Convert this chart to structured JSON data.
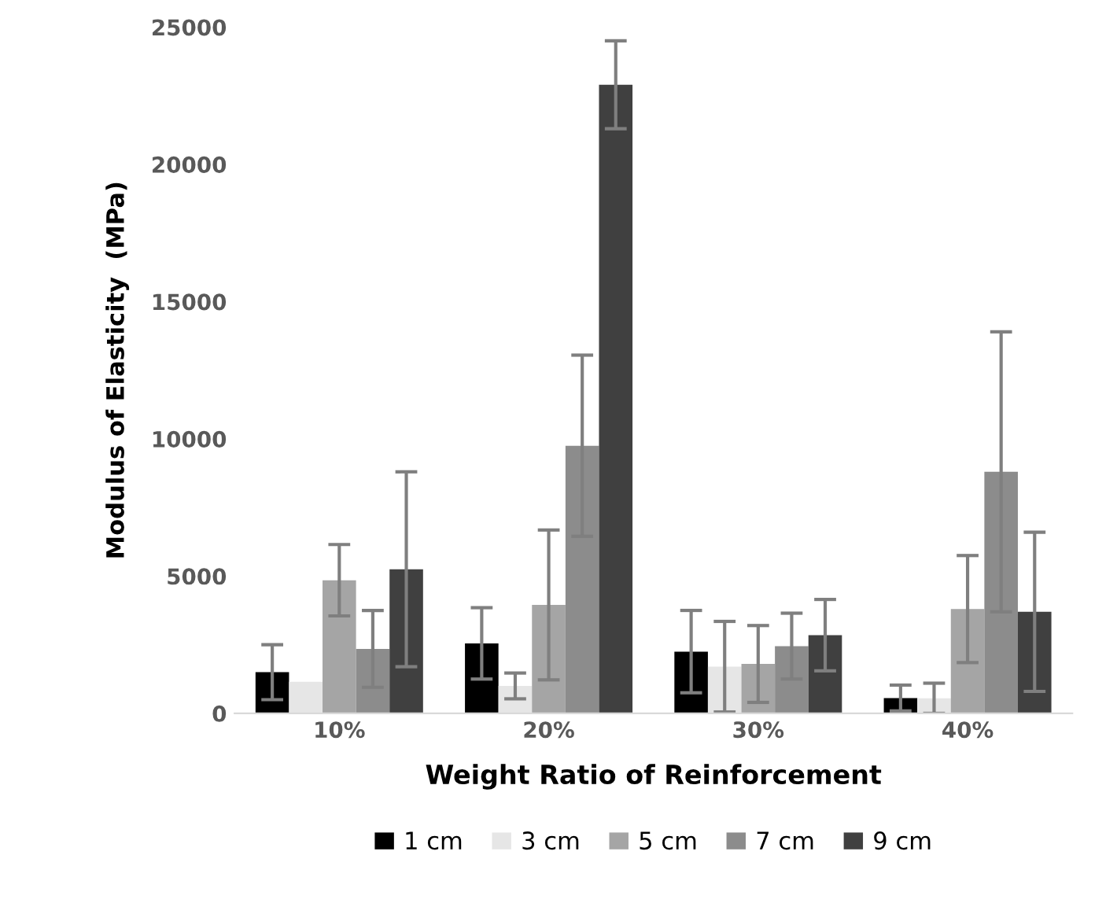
{
  "chart_data": {
    "type": "bar",
    "xlabel": "Weight Ratio of Reinforcement",
    "ylabel": "Modulus of Elasticity  (MPa)",
    "categories": [
      "10%",
      "20%",
      "30%",
      "40%"
    ],
    "series": [
      {
        "name": "1 cm",
        "color": "#000000",
        "values": [
          1500,
          2550,
          2250,
          560
        ],
        "errors": [
          1000,
          1300,
          1500,
          470
        ]
      },
      {
        "name": "3 cm",
        "color": "#e6e6e6",
        "values": [
          1150,
          1000,
          1700,
          550
        ],
        "errors": [
          null,
          470,
          1650,
          550
        ]
      },
      {
        "name": "5 cm",
        "color": "#a5a5a5",
        "values": [
          4850,
          3950,
          1800,
          3800
        ],
        "errors": [
          1300,
          2730,
          1400,
          1950
        ]
      },
      {
        "name": "7 cm",
        "color": "#8c8c8c",
        "values": [
          2350,
          9750,
          2450,
          8800
        ],
        "errors": [
          1400,
          3300,
          1200,
          5100
        ]
      },
      {
        "name": "9 cm",
        "color": "#404040",
        "values": [
          5250,
          22900,
          2850,
          3700
        ],
        "errors": [
          3550,
          1600,
          1300,
          2900
        ]
      }
    ],
    "ylim": [
      0,
      25000
    ],
    "yticks": [
      0,
      5000,
      10000,
      15000,
      20000,
      25000
    ],
    "grid": false,
    "legend": "bottom"
  }
}
